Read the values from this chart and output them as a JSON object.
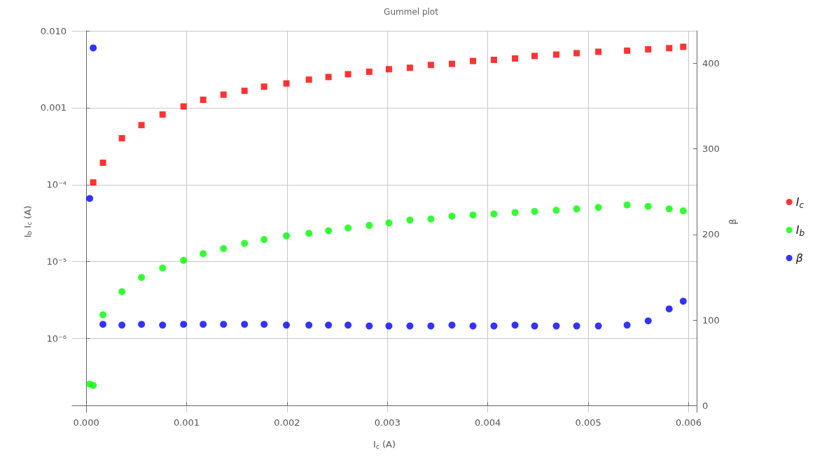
{
  "chart_data": {
    "type": "scatter",
    "title": "Gummel plot",
    "xlabel": "I$_{c}$ (A)",
    "ylabel": "I$_{b}$ I$_{c}$ (A)",
    "y2label": "β",
    "log": "y",
    "grid": true,
    "legend": "right",
    "xlim": [
      -0.00014,
      0.00608
    ],
    "xticks": [
      {
        "value": 0,
        "label": "0.000"
      },
      0.001,
      0.002,
      0.003,
      0.004,
      0.005,
      0.006
    ],
    "ylim": [
      1.1e-07,
      0.01
    ],
    "yticks": [
      {
        "value": 1e-06,
        "label": "10⁻⁶"
      },
      {
        "value": 1e-05,
        "label": "10⁻⁵"
      },
      {
        "value": 0.0001,
        "label": "10⁻⁴"
      },
      0.001,
      {
        "value": 0.01,
        "label": "0.010"
      }
    ],
    "y2lim": [
      -8,
      438
    ],
    "y2ticks": [
      0,
      100,
      200,
      300,
      400
    ],
    "series": [
      {
        "name": "I$_{c}$",
        "color": "#ff0000",
        "marker": "square",
        "x": [
          7e-05,
          0.000167,
          0.000356,
          0.000551,
          0.000761,
          0.00097,
          0.001165,
          0.001368,
          0.001577,
          0.001772,
          0.001994,
          0.002218,
          0.002413,
          0.002608,
          0.002819,
          0.003015,
          0.003224,
          0.003433,
          0.003643,
          0.003852,
          0.004061,
          0.004271,
          0.004466,
          0.004682,
          0.004885,
          0.005101,
          0.005387,
          0.005597,
          0.005806,
          0.005946
        ],
        "values": [
          0.000107,
          0.000193,
          0.000402,
          0.000595,
          0.000817,
          0.00104,
          0.00127,
          0.00148,
          0.00166,
          0.00188,
          0.00207,
          0.00232,
          0.00251,
          0.00273,
          0.00294,
          0.00317,
          0.00331,
          0.0036,
          0.00372,
          0.00405,
          0.00419,
          0.00437,
          0.00471,
          0.00491,
          0.00512,
          0.00534,
          0.00552,
          0.00575,
          0.00595,
          0.0062
        ]
      },
      {
        "name": "I$_{b}$",
        "color": "#00ff00",
        "marker": "circle",
        "x": [
          3.5e-05,
          7e-05,
          0.000167,
          0.000356,
          0.000551,
          0.000761,
          0.00097,
          0.001165,
          0.001368,
          0.001577,
          0.001772,
          0.001994,
          0.002218,
          0.002413,
          0.002608,
          0.002819,
          0.003015,
          0.003224,
          0.003433,
          0.003643,
          0.003852,
          0.004061,
          0.004271,
          0.004466,
          0.004682,
          0.004885,
          0.005101,
          0.005387,
          0.005597,
          0.005806,
          0.005946
        ],
        "values": [
          2.57e-07,
          2.47e-07,
          2.04e-06,
          4.08e-06,
          6.25e-06,
          8.28e-06,
          1.04e-05,
          1.27e-05,
          1.48e-05,
          1.73e-05,
          1.94e-05,
          2.17e-05,
          2.34e-05,
          2.52e-05,
          2.74e-05,
          2.96e-05,
          3.19e-05,
          3.47e-05,
          3.59e-05,
          3.9e-05,
          4.04e-05,
          4.17e-05,
          4.35e-05,
          4.5e-05,
          4.65e-05,
          4.85e-05,
          5.06e-05,
          5.46e-05,
          5.24e-05,
          4.85e-05,
          4.58e-05
        ]
      },
      {
        "name": "β",
        "color": "#0000ff",
        "marker": "circle",
        "axis": "y2",
        "x": [
          3.5e-05,
          7e-05,
          0.000167,
          0.000356,
          0.000551,
          0.000761,
          0.00097,
          0.001165,
          0.001368,
          0.001577,
          0.001772,
          0.001994,
          0.002218,
          0.002413,
          0.002608,
          0.002819,
          0.003015,
          0.003224,
          0.003433,
          0.003643,
          0.003852,
          0.004061,
          0.004271,
          0.004466,
          0.004682,
          0.004885,
          0.005101,
          0.005387,
          0.005597,
          0.005806,
          0.005946
        ],
        "values": [
          242,
          418,
          95,
          94,
          95,
          94,
          95,
          95,
          95,
          95,
          95,
          94,
          94,
          94,
          94,
          93,
          93,
          93,
          93,
          94,
          93,
          93,
          94,
          93,
          93,
          93,
          93,
          94,
          99,
          113,
          122
        ]
      }
    ]
  }
}
